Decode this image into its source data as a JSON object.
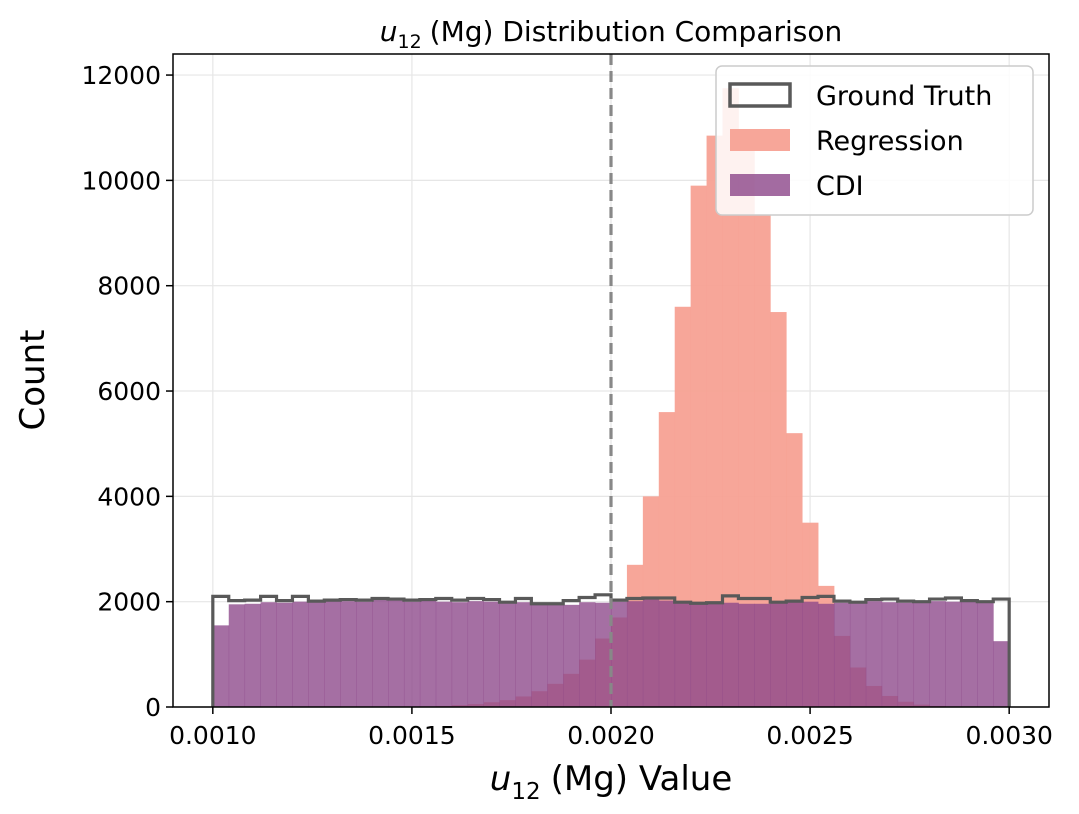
{
  "chart_data": {
    "type": "histogram",
    "title": "(Mg) Distribution Comparison",
    "title_symbol": "u",
    "title_subscript": "12",
    "xlabel": "(Mg) Value",
    "xlabel_symbol": "u",
    "xlabel_subscript": "12",
    "ylabel": "Count",
    "xlim": [
      0.0009,
      0.0031
    ],
    "ylim": [
      0,
      12400
    ],
    "xticks": [
      0.001,
      0.0015,
      0.002,
      0.0025,
      0.003
    ],
    "xtick_labels": [
      "0.0010",
      "0.0015",
      "0.0020",
      "0.0025",
      "0.0030"
    ],
    "yticks": [
      0,
      2000,
      4000,
      6000,
      8000,
      10000,
      12000
    ],
    "ytick_labels": [
      "0",
      "2000",
      "4000",
      "6000",
      "8000",
      "10000",
      "12000"
    ],
    "grid": true,
    "reference_line": {
      "x": 0.002,
      "style": "dashed",
      "color": "#888888"
    },
    "bins": {
      "start": 0.001,
      "end": 0.003,
      "count": 50
    },
    "legend_position": "top-right",
    "series": [
      {
        "name": "Regression",
        "style": "filled",
        "color": "#f7a193",
        "values": [
          0,
          0,
          0,
          0,
          0,
          0,
          0,
          0,
          0,
          0,
          0,
          2,
          5,
          10,
          20,
          35,
          55,
          90,
          130,
          200,
          300,
          440,
          630,
          900,
          1300,
          1700,
          2700,
          4000,
          5600,
          7600,
          9900,
          10850,
          11750,
          10750,
          9350,
          7500,
          5200,
          3500,
          2300,
          1350,
          750,
          400,
          210,
          100,
          45,
          20,
          8,
          3,
          0,
          0
        ]
      },
      {
        "name": "CDI",
        "style": "filled",
        "color": "#8c4689",
        "values": [
          1550,
          1950,
          1960,
          1990,
          1980,
          2000,
          2010,
          2020,
          2010,
          2000,
          2040,
          2030,
          2000,
          2020,
          2000,
          1990,
          2010,
          2000,
          1980,
          1990,
          1960,
          1960,
          1940,
          1990,
          1980,
          2000,
          2010,
          2060,
          2020,
          1970,
          1950,
          1960,
          1980,
          1960,
          1960,
          1990,
          2010,
          2000,
          1960,
          1980,
          2000,
          2010,
          1990,
          1980,
          1990,
          2010,
          2000,
          2010,
          1990,
          1250
        ]
      },
      {
        "name": "Ground Truth",
        "style": "step",
        "color": "#595959",
        "values": [
          2100,
          2020,
          2030,
          2100,
          2020,
          2100,
          2010,
          2030,
          2040,
          2030,
          2060,
          2050,
          2030,
          2040,
          2060,
          2030,
          2060,
          2040,
          1990,
          2060,
          1960,
          1960,
          2020,
          2080,
          2130,
          2030,
          2060,
          2070,
          2070,
          1990,
          1970,
          1980,
          2110,
          2060,
          2060,
          1990,
          2010,
          2080,
          2100,
          2010,
          1990,
          2040,
          2050,
          2010,
          2000,
          2050,
          2070,
          2020,
          2000,
          2050
        ]
      }
    ]
  },
  "legend": {
    "entries": [
      {
        "label": "Ground Truth",
        "style": "outline",
        "color": "#595959"
      },
      {
        "label": "Regression",
        "style": "filled",
        "color": "#f7a193"
      },
      {
        "label": "CDI",
        "style": "filled",
        "color": "#8c4689"
      }
    ]
  }
}
